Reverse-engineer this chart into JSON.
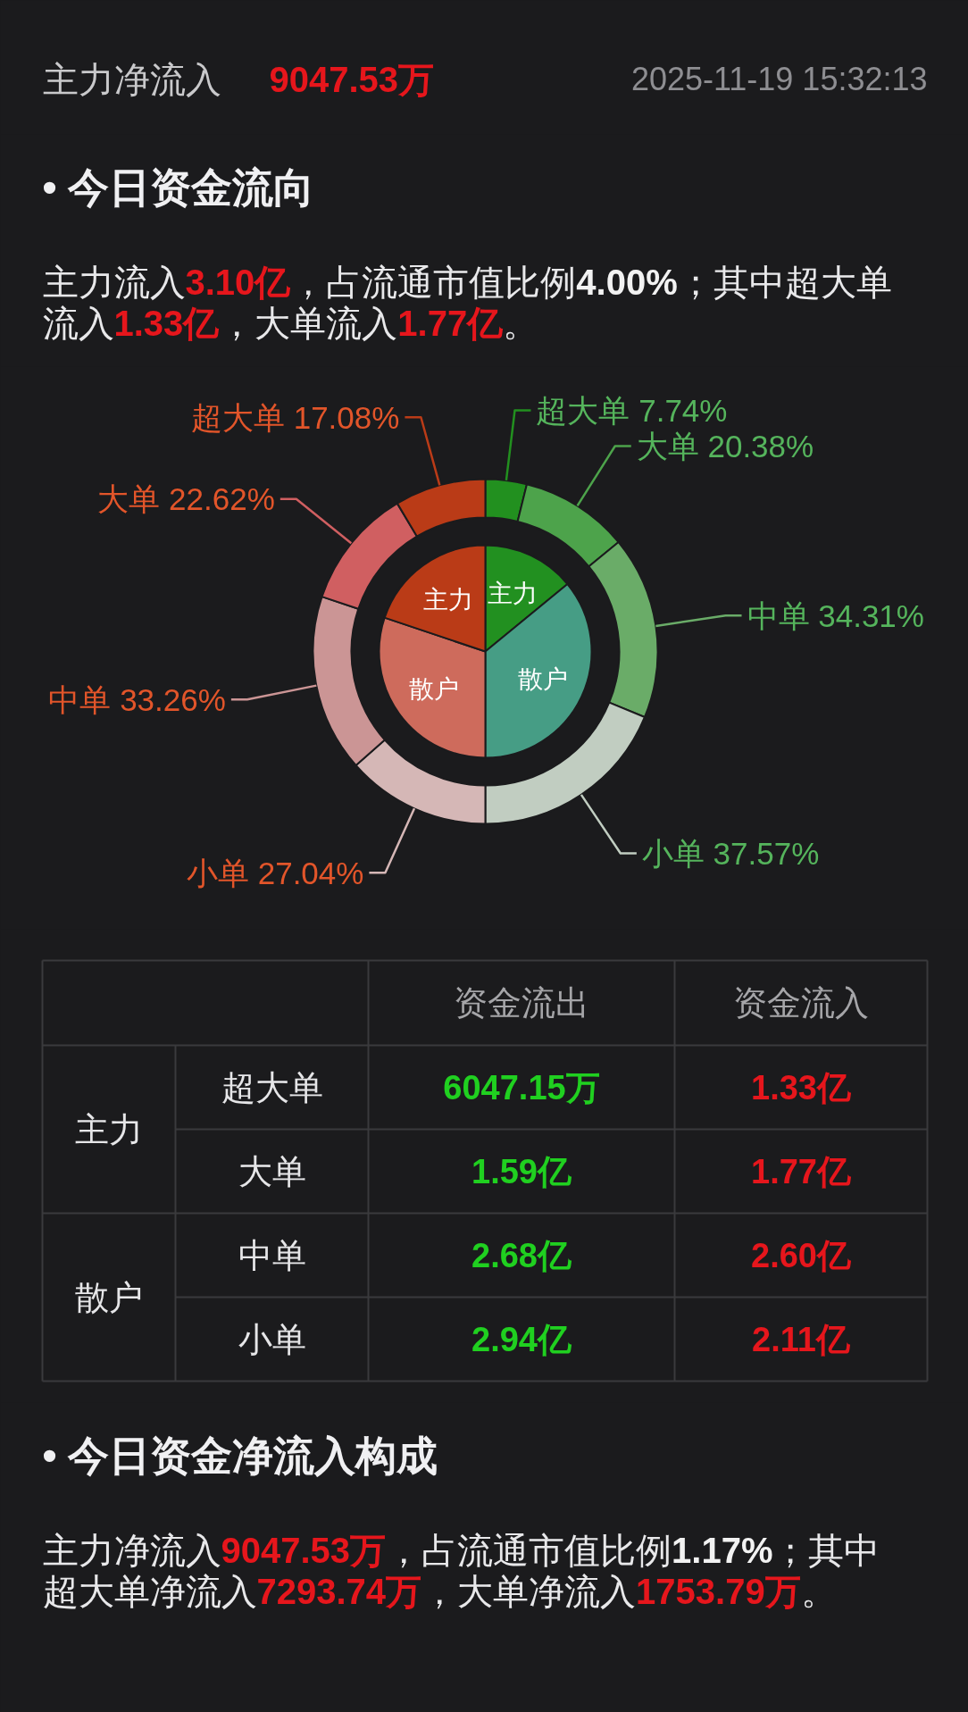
{
  "chart_data": [
    {
      "type": "other",
      "annotations": [
        "主力净流入",
        "9047.53万",
        "2025-11-19 15:32:13"
      ],
      "colors": [
        "#c9c9cb",
        "#e6161c",
        "#8e8e92"
      ]
    },
    {
      "type": "other",
      "title": "• 今日资金流向",
      "annotations": [
        "主力流入",
        "3.10亿",
        "，占流通市值比例",
        "4.00%",
        "；其中超大单",
        "流入",
        "1.33亿",
        "，大单流入",
        "1.77亿",
        "。"
      ],
      "colors": [
        "#e8e8ea",
        "#e6161c",
        "#e8e8ea",
        "#f2f2f2",
        "#e8e8ea",
        "#e8e8ea",
        "#e6161c",
        "#e8e8ea",
        "#e6161c",
        "#e8e8ea"
      ]
    },
    {
      "type": "donut",
      "series": [
        {
          "type": "donut",
          "values": [
            7.74,
            20.38,
            34.31,
            37.57,
            27.04,
            33.26,
            22.62,
            17.08
          ],
          "colors": [
            "#22901f",
            "#4da34b",
            "#6aac68",
            "#c1cdc1",
            "#d5b7b6",
            "#cb9595",
            "#d05f61",
            "#ba3b17"
          ],
          "value_labels": [
            "超大单 7.74%",
            "大单 20.38%",
            "中单 34.31%",
            "小单 37.57%",
            "小单 27.04%",
            "中单 33.26%",
            "大单 22.62%",
            "超大单 17.08%"
          ]
        },
        {
          "type": "pie",
          "values": [
            14.06,
            35.94,
            30.15,
            19.85
          ],
          "colors": [
            "#229020",
            "#469d85",
            "#ce6b5c",
            "#ba3b17"
          ],
          "value_labels": [
            "主力",
            "散户",
            "散户",
            "主力"
          ]
        }
      ]
    },
    {
      "type": "other",
      "categories": [
        "资金流出",
        "资金流入"
      ],
      "y_categories": [
        "超大单",
        "大单",
        "中单",
        "小单"
      ],
      "y2_categories": [
        "主力",
        null,
        "散户",
        null
      ],
      "cell_labels": [
        [
          "6047.15万",
          "1.33亿"
        ],
        [
          "1.59亿",
          "1.77亿"
        ],
        [
          "2.68亿",
          "2.60亿"
        ],
        [
          "2.94亿",
          "2.11亿"
        ]
      ]
    },
    {
      "type": "other",
      "title": "• 今日资金净流入构成",
      "annotations": [
        "主力净流入",
        "9047.53万",
        "，占流通市值比例",
        "1.17%",
        "；其中",
        "超大单净流入",
        "7293.74万",
        "，大单净流入",
        "1753.79万",
        "。"
      ],
      "colors": [
        "#e8e8ea",
        "#e6161c",
        "#e8e8ea",
        "#f2f2f2",
        "#e8e8ea",
        "#e8e8ea",
        "#e6161c",
        "#e8e8ea",
        "#e6161c",
        "#e8e8ea"
      ]
    }
  ]
}
